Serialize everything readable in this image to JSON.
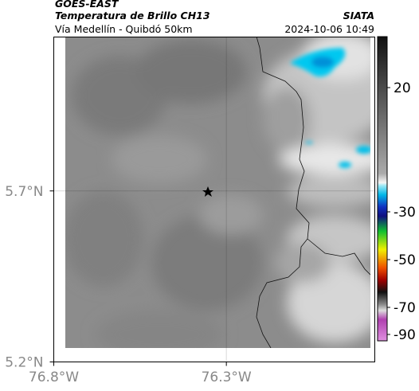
{
  "header": {
    "satellite": "GOES-EAST",
    "product": "Temperatura de Brillo CH13",
    "region": "Vía Medellín - Quibdó 50km",
    "source": "SIATA",
    "datetime": "2024-10-06 10:49"
  },
  "map": {
    "xlim": [
      -76.8,
      -75.87
    ],
    "ylim": [
      5.2,
      6.15
    ],
    "xticks": [
      {
        "value": -76.8,
        "label": "76.8°W"
      },
      {
        "value": -76.3,
        "label": "76.3°W"
      }
    ],
    "yticks": [
      {
        "value": 5.7,
        "label": "5.7°N"
      },
      {
        "value": 5.2,
        "label": "5.2°N"
      }
    ],
    "grid": true
  },
  "colorbar": {
    "ticks": [
      20,
      -30,
      -50,
      -70,
      -90
    ]
  }
}
